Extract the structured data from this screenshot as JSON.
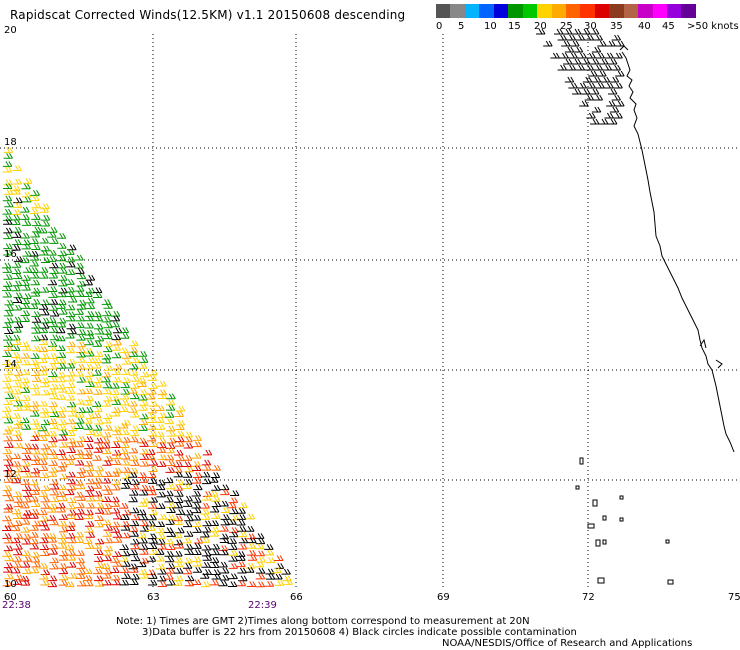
{
  "title": "Rapidscat Corrected Winds(12.5KM) v1.1 20150608 descending",
  "legend": {
    "colors": [
      "#555555",
      "#888888",
      "#00b4ff",
      "#0064ff",
      "#0000dc",
      "#009600",
      "#00c800",
      "#ffd200",
      "#ffaa00",
      "#ff6400",
      "#ff3200",
      "#dc0000",
      "#8c3c1e",
      "#b46446",
      "#c800c8",
      "#ff00ff",
      "#9600dc",
      "#640096"
    ],
    "labels": [
      "0",
      "5",
      "10",
      "15",
      "20",
      "25",
      "30",
      "35",
      "40",
      "45",
      ">50 knots"
    ]
  },
  "axes": {
    "lat_labels": [
      "20",
      "18",
      "16",
      "14",
      "12",
      "10"
    ],
    "lon_labels": [
      "60",
      "63",
      "66",
      "69",
      "72",
      "75"
    ]
  },
  "times": {
    "left": "22:38",
    "right": "22:39"
  },
  "notes": {
    "line1": "Note: 1) Times are GMT 2)Times along bottom correspond to measurement at 20N",
    "line2": "3)Data buffer is 22 hrs from 20150608 4) Black circles indicate possible contamination"
  },
  "credit": "NOAA/NESDIS/Office of Research and Applications"
}
